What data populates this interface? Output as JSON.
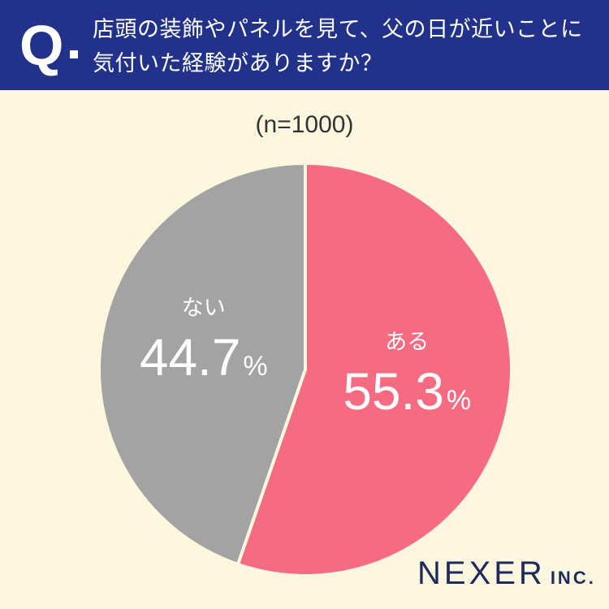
{
  "header": {
    "q_letter": "Q",
    "question": "店頭の装飾やパネルを見て、父の日が近いことに気付いた経験がありますか？"
  },
  "sample_label": "(n=1000)",
  "brand": {
    "name": "NEXER",
    "suffix": "INC."
  },
  "colors": {
    "header_bg": "#22318a",
    "background": "#fdf7df",
    "aru": "#f56b82",
    "nai": "#a3a3a3",
    "brand": "#1e2a5a"
  },
  "chart_data": {
    "type": "pie",
    "title": "",
    "slices": [
      {
        "label": "ある",
        "value": 55.3,
        "display": "55.3",
        "unit": "%",
        "color": "#f56b82"
      },
      {
        "label": "ない",
        "value": 44.7,
        "display": "44.7",
        "unit": "%",
        "color": "#a3a3a3"
      }
    ]
  }
}
